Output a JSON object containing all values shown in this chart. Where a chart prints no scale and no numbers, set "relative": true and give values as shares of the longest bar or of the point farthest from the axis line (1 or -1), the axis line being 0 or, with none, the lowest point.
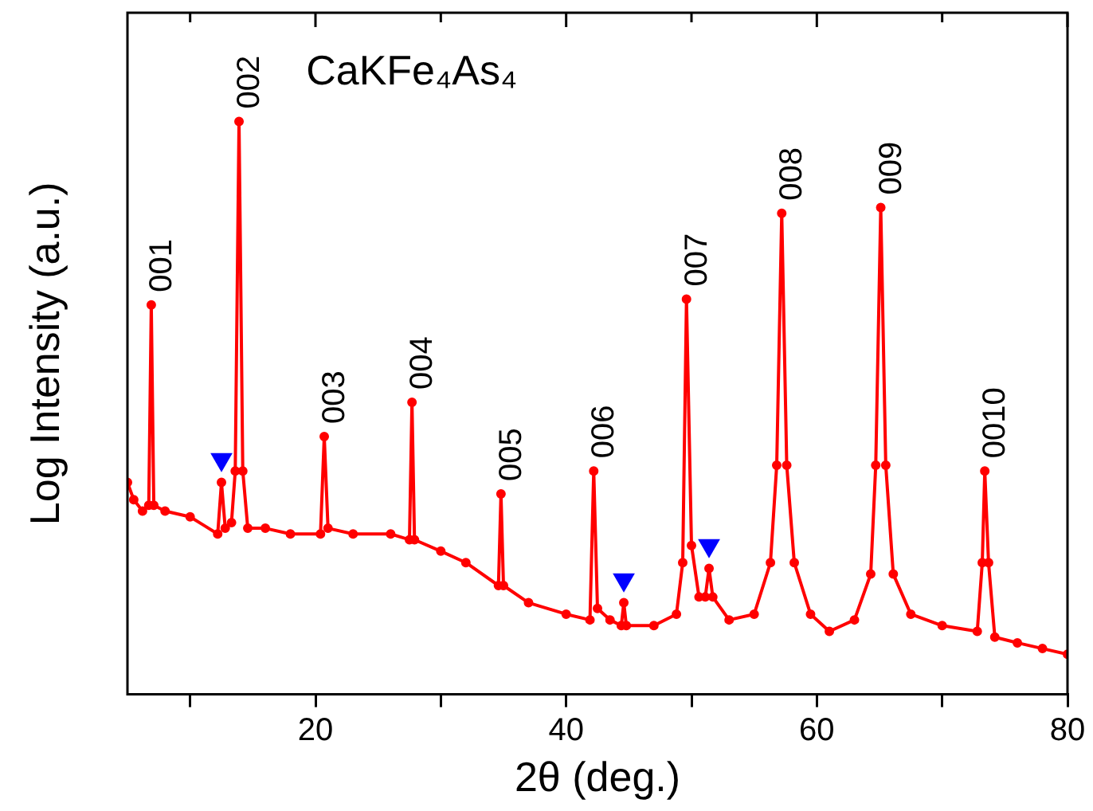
{
  "chart_data": {
    "type": "line",
    "title": "CaKFe₄As₄",
    "xlabel": "2θ (deg.)",
    "ylabel": "Log Intensity (a.u.)",
    "relative": true,
    "xlim": [
      5,
      80
    ],
    "xticks": [
      {
        "value": 10,
        "label": null
      },
      20,
      {
        "value": 30,
        "label": null
      },
      40,
      {
        "value": 50,
        "label": null
      },
      60,
      {
        "value": 70,
        "label": null
      },
      80
    ],
    "grid": false,
    "legend": false,
    "marker": "circle",
    "line_style": "solid",
    "series": [
      {
        "color": "#ff0000",
        "x": [
          5.0,
          5.5,
          6.2,
          6.7,
          6.9,
          7.1,
          8,
          10,
          12.2,
          12.5,
          12.8,
          13.3,
          13.6,
          13.9,
          14.2,
          14.6,
          16,
          18,
          20.4,
          20.7,
          21.0,
          23,
          26,
          27.5,
          27.7,
          27.9,
          30,
          32,
          34.6,
          34.8,
          35.0,
          37,
          40,
          41.9,
          42.2,
          42.5,
          43.5,
          44.4,
          44.6,
          44.8,
          47,
          48.8,
          49.3,
          49.6,
          50.0,
          50.6,
          51.1,
          51.4,
          51.7,
          53,
          55,
          56.3,
          56.8,
          57.2,
          57.6,
          58.2,
          59.5,
          61,
          63,
          64.3,
          64.7,
          65.1,
          65.5,
          66.1,
          67.5,
          70,
          72.8,
          73.2,
          73.4,
          73.7,
          74.2,
          76,
          78,
          80
        ],
        "values": [
          0.37,
          0.34,
          0.32,
          0.33,
          0.68,
          0.33,
          0.32,
          0.31,
          0.28,
          0.37,
          0.29,
          0.3,
          0.39,
          1,
          0.39,
          0.29,
          0.29,
          0.28,
          0.28,
          0.45,
          0.29,
          0.28,
          0.28,
          0.27,
          0.51,
          0.27,
          0.25,
          0.23,
          0.19,
          0.35,
          0.19,
          0.16,
          0.14,
          0.13,
          0.39,
          0.15,
          0.13,
          0.12,
          0.16,
          0.12,
          0.12,
          0.14,
          0.23,
          0.69,
          0.26,
          0.17,
          0.17,
          0.22,
          0.17,
          0.13,
          0.14,
          0.23,
          0.4,
          0.84,
          0.4,
          0.23,
          0.14,
          0.11,
          0.13,
          0.21,
          0.4,
          0.85,
          0.4,
          0.21,
          0.14,
          0.12,
          0.11,
          0.23,
          0.39,
          0.23,
          0.1,
          0.09,
          0.08,
          0.07
        ]
      },
      {
        "type": "scatter",
        "color": "#0000ff",
        "marker": "triangle",
        "x": [
          12.5,
          44.6,
          51.4
        ],
        "values": [
          0.41,
          0.2,
          0.26
        ]
      }
    ],
    "annotations": [
      {
        "text": "001",
        "x": 6.9,
        "y": 0.68
      },
      {
        "text": "002",
        "x": 13.9,
        "y": 1
      },
      {
        "text": "003",
        "x": 20.7,
        "y": 0.45
      },
      {
        "text": "004",
        "x": 27.7,
        "y": 0.51
      },
      {
        "text": "005",
        "x": 34.8,
        "y": 0.35
      },
      {
        "text": "006",
        "x": 42.2,
        "y": 0.39
      },
      {
        "text": "007",
        "x": 49.6,
        "y": 0.69
      },
      {
        "text": "008",
        "x": 57.2,
        "y": 0.84
      },
      {
        "text": "009",
        "x": 65.1,
        "y": 0.85
      },
      {
        "text": "0010",
        "x": 73.4,
        "y": 0.39
      }
    ]
  }
}
